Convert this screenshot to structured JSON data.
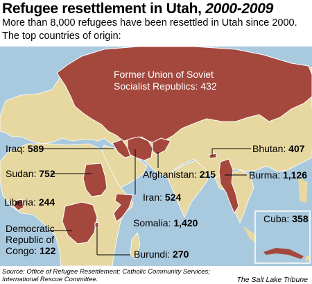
{
  "header": {
    "title_main": "Refugee resettlement in Utah,",
    "title_years": "2000-2009",
    "subtitle_line1": "More than 8,000 refugees have been resettled in Utah since 2000.",
    "subtitle_line2": "The top countries of origin:"
  },
  "countries": [
    {
      "name": "Former Union of Soviet Socialist Republics",
      "line1": "Former Union of Soviet",
      "line2": "Socialist Republics: 432",
      "value": 432
    },
    {
      "name": "Iraq",
      "label": "Iraq:",
      "value_text": "589",
      "value": 589
    },
    {
      "name": "Sudan",
      "label": "Sudan:",
      "value_text": "752",
      "value": 752
    },
    {
      "name": "Liberia",
      "label": "Liberia:",
      "value_text": "244",
      "value": 244
    },
    {
      "name": "Democratic Republic of Congo",
      "line1": "Democratic",
      "line2": "Republic of",
      "line3": "Congo:",
      "value_text": "122",
      "value": 122
    },
    {
      "name": "Afghanistan",
      "label": "Afghanistan:",
      "value_text": "215",
      "value": 215
    },
    {
      "name": "Iran",
      "label": "Iran:",
      "value_text": "524",
      "value": 524
    },
    {
      "name": "Somalia",
      "label": "Somalia:",
      "value_text": "1,420",
      "value": 1420
    },
    {
      "name": "Burundi",
      "label": "Burundi:",
      "value_text": "270",
      "value": 270
    },
    {
      "name": "Bhutan",
      "label": "Bhutan:",
      "value_text": "407",
      "value": 407
    },
    {
      "name": "Burma",
      "label": "Burma:",
      "value_text": "1,126",
      "value": 1126
    },
    {
      "name": "Cuba",
      "label": "Cuba:",
      "value_text": "358",
      "value": 358
    }
  ],
  "footer": {
    "source_line1": "Source:  Office of Refugee Resettlement; Catholic Community Services;",
    "source_line2": "International Rescue Committee.",
    "credit": "The Salt Lake Tribune"
  },
  "colors": {
    "ocean": "#a9c9de",
    "land": "#e7d8a1",
    "highlight": "#a4483e",
    "border": "#ffffff"
  }
}
